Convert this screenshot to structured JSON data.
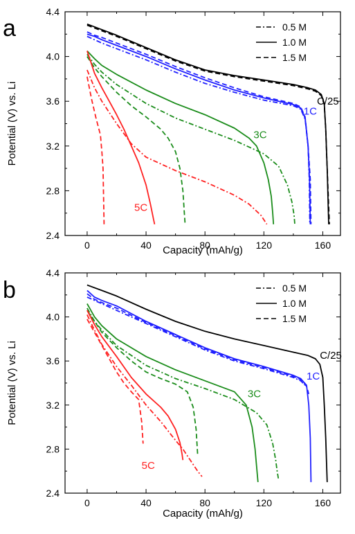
{
  "chart_data": [
    {
      "panel_label": "a",
      "type": "line",
      "xlabel": "Capacity (mAh/g)",
      "ylabel": "Potential (V) vs. Li",
      "xlim": [
        -15,
        172
      ],
      "ylim": [
        2.4,
        4.4
      ],
      "xticks": [
        0,
        40,
        80,
        120,
        160
      ],
      "yticks": [
        2.4,
        2.8,
        3.2,
        3.6,
        4.0,
        4.4
      ],
      "legend": {
        "placement": "top-right",
        "entries": [
          {
            "label": "0.5 M",
            "style": "dashdot"
          },
          {
            "label": "1.0 M",
            "style": "solid"
          },
          {
            "label": "1.5 M",
            "style": "dashed"
          }
        ]
      },
      "rate_labels": [
        {
          "text": "C/25",
          "color": "#000000",
          "x": 156,
          "y": 3.57
        },
        {
          "text": "1C",
          "color": "#1f1fff",
          "x": 147,
          "y": 3.48
        },
        {
          "text": "3C",
          "color": "#1a8c1a",
          "x": 113,
          "y": 3.27
        },
        {
          "text": "5C",
          "color": "#ff2020",
          "x": 32,
          "y": 2.62
        }
      ],
      "series": [
        {
          "rate": "C/25",
          "concentration": "1.0 M",
          "color": "#000000",
          "style": "solid",
          "x": [
            0,
            10,
            20,
            40,
            60,
            80,
            100,
            120,
            140,
            150,
            155,
            159,
            161,
            162,
            163,
            164
          ],
          "y": [
            4.29,
            4.24,
            4.19,
            4.08,
            3.97,
            3.88,
            3.83,
            3.79,
            3.75,
            3.72,
            3.7,
            3.66,
            3.58,
            3.35,
            3.0,
            2.5
          ]
        },
        {
          "rate": "C/25",
          "concentration": "1.5 M",
          "color": "#000000",
          "style": "dashed",
          "x": [
            0,
            10,
            20,
            40,
            60,
            80,
            100,
            120,
            140,
            150,
            155,
            159,
            161,
            162,
            163,
            164.5
          ],
          "y": [
            4.28,
            4.23,
            4.18,
            4.07,
            3.96,
            3.87,
            3.82,
            3.78,
            3.74,
            3.71,
            3.69,
            3.65,
            3.57,
            3.35,
            3.0,
            2.5
          ]
        },
        {
          "rate": "1C",
          "concentration": "1.0 M",
          "color": "#1f1fff",
          "style": "solid",
          "x": [
            0,
            5,
            10,
            20,
            40,
            60,
            80,
            100,
            120,
            140,
            145,
            148,
            150,
            151,
            151.5
          ],
          "y": [
            4.2,
            4.18,
            4.15,
            4.1,
            4.0,
            3.89,
            3.79,
            3.7,
            3.63,
            3.57,
            3.54,
            3.45,
            3.2,
            2.9,
            2.5
          ]
        },
        {
          "rate": "1C",
          "concentration": "0.5 M",
          "color": "#1f1fff",
          "style": "dashdot",
          "x": [
            0,
            5,
            10,
            20,
            40,
            60,
            80,
            100,
            120,
            140,
            145,
            148,
            150,
            150.8,
            151.2
          ],
          "y": [
            4.18,
            4.15,
            4.12,
            4.07,
            3.97,
            3.86,
            3.76,
            3.68,
            3.61,
            3.56,
            3.53,
            3.44,
            3.2,
            2.9,
            2.5
          ]
        },
        {
          "rate": "1C",
          "concentration": "1.5 M",
          "color": "#1f1fff",
          "style": "dashed",
          "x": [
            0,
            5,
            10,
            20,
            40,
            60,
            80,
            100,
            120,
            140,
            145,
            148,
            150,
            151.5,
            152
          ],
          "y": [
            4.22,
            4.19,
            4.17,
            4.12,
            4.02,
            3.91,
            3.81,
            3.72,
            3.64,
            3.58,
            3.55,
            3.46,
            3.2,
            2.9,
            2.5
          ]
        },
        {
          "rate": "3C",
          "concentration": "1.0 M",
          "color": "#1a8c1a",
          "style": "solid",
          "x": [
            0,
            5,
            10,
            20,
            40,
            60,
            80,
            100,
            110,
            115,
            120,
            123,
            125,
            126,
            126.5
          ],
          "y": [
            4.05,
            3.98,
            3.92,
            3.84,
            3.7,
            3.58,
            3.48,
            3.36,
            3.27,
            3.2,
            3.05,
            2.9,
            2.75,
            2.6,
            2.5
          ]
        },
        {
          "rate": "3C",
          "concentration": "0.5 M",
          "color": "#1a8c1a",
          "style": "dashdot",
          "x": [
            0,
            5,
            10,
            20,
            40,
            60,
            80,
            100,
            120,
            130,
            136,
            139,
            140.5,
            141
          ],
          "y": [
            4.02,
            3.93,
            3.86,
            3.75,
            3.58,
            3.45,
            3.35,
            3.25,
            3.13,
            3.02,
            2.85,
            2.7,
            2.58,
            2.5
          ]
        },
        {
          "rate": "3C",
          "concentration": "1.5 M",
          "color": "#1a8c1a",
          "style": "dashed",
          "x": [
            0,
            5,
            10,
            20,
            30,
            40,
            50,
            55,
            60,
            63,
            65,
            66,
            66.5
          ],
          "y": [
            4.0,
            3.9,
            3.82,
            3.68,
            3.56,
            3.46,
            3.35,
            3.27,
            3.15,
            3.0,
            2.8,
            2.6,
            2.5
          ]
        },
        {
          "rate": "5C",
          "concentration": "1.0 M",
          "color": "#ff2020",
          "style": "solid",
          "x": [
            0,
            5,
            10,
            15,
            20,
            25,
            30,
            35,
            40,
            43,
            45,
            45.8
          ],
          "y": [
            4.05,
            3.85,
            3.72,
            3.6,
            3.48,
            3.35,
            3.2,
            3.05,
            2.85,
            2.68,
            2.55,
            2.5
          ]
        },
        {
          "rate": "5C",
          "concentration": "0.5 M",
          "color": "#ff2020",
          "style": "dashdot",
          "x": [
            0,
            5,
            10,
            20,
            30,
            40,
            60,
            80,
            100,
            110,
            118,
            122
          ],
          "y": [
            3.88,
            3.72,
            3.6,
            3.4,
            3.22,
            3.1,
            2.98,
            2.88,
            2.76,
            2.68,
            2.58,
            2.5
          ]
        },
        {
          "rate": "5C",
          "concentration": "1.5 M",
          "color": "#ff2020",
          "style": "dashed",
          "x": [
            0,
            3,
            6,
            9,
            10,
            10.8,
            11.2,
            11.5
          ],
          "y": [
            3.82,
            3.62,
            3.45,
            3.3,
            3.15,
            3.0,
            2.7,
            2.5
          ]
        }
      ]
    },
    {
      "panel_label": "b",
      "type": "line",
      "xlabel": "Capacity (mAh/g)",
      "ylabel": "Potential (V) vs. Li",
      "xlim": [
        -15,
        172
      ],
      "ylim": [
        2.4,
        4.4
      ],
      "xticks": [
        0,
        40,
        80,
        120,
        160
      ],
      "yticks": [
        2.4,
        2.8,
        3.2,
        3.6,
        4.0,
        4.4
      ],
      "legend": {
        "placement": "top-right",
        "entries": [
          {
            "label": "0.5 M",
            "style": "dashdot"
          },
          {
            "label": "1.0 M",
            "style": "solid"
          },
          {
            "label": "1.5 M",
            "style": "dashed"
          }
        ]
      },
      "rate_labels": [
        {
          "text": "C/25",
          "color": "#000000",
          "x": 158,
          "y": 3.62
        },
        {
          "text": "1C",
          "color": "#1f1fff",
          "x": 149,
          "y": 3.43
        },
        {
          "text": "3C",
          "color": "#1a8c1a",
          "x": 109,
          "y": 3.27
        },
        {
          "text": "5C",
          "color": "#ff2020",
          "x": 37,
          "y": 2.62
        }
      ],
      "series": [
        {
          "rate": "C/25",
          "concentration": "1.0 M",
          "color": "#000000",
          "style": "solid",
          "x": [
            0,
            10,
            20,
            40,
            60,
            80,
            100,
            120,
            140,
            150,
            155,
            158,
            160,
            161,
            162,
            163
          ],
          "y": [
            4.29,
            4.24,
            4.19,
            4.07,
            3.96,
            3.87,
            3.8,
            3.74,
            3.68,
            3.65,
            3.62,
            3.57,
            3.45,
            3.2,
            2.9,
            2.5
          ]
        },
        {
          "rate": "1C",
          "concentration": "1.0 M",
          "color": "#1f1fff",
          "style": "solid",
          "x": [
            0,
            5,
            10,
            20,
            40,
            60,
            80,
            100,
            120,
            140,
            145,
            149,
            150.5,
            151.5,
            152
          ],
          "y": [
            4.24,
            4.18,
            4.15,
            4.1,
            3.96,
            3.84,
            3.72,
            3.62,
            3.55,
            3.47,
            3.44,
            3.38,
            3.2,
            2.9,
            2.5
          ]
        },
        {
          "rate": "1C",
          "concentration": "0.5 M",
          "color": "#1f1fff",
          "style": "dashdot",
          "x": [
            0,
            5,
            10,
            20,
            40,
            60,
            80,
            100,
            120,
            140,
            145,
            148
          ],
          "y": [
            4.18,
            4.15,
            4.12,
            4.06,
            3.94,
            3.82,
            3.7,
            3.6,
            3.53,
            3.45,
            3.42,
            3.38
          ]
        },
        {
          "rate": "1C",
          "concentration": "1.5 M",
          "color": "#1f1fff",
          "style": "dashed",
          "x": [
            0,
            5,
            10,
            20,
            40,
            60,
            80,
            100,
            120,
            140,
            145,
            149,
            150.5
          ],
          "y": [
            4.21,
            4.16,
            4.13,
            4.08,
            3.95,
            3.83,
            3.71,
            3.61,
            3.54,
            3.46,
            3.43,
            3.37,
            3.3
          ]
        },
        {
          "rate": "3C",
          "concentration": "1.0 M",
          "color": "#1a8c1a",
          "style": "solid",
          "x": [
            0,
            5,
            10,
            20,
            40,
            60,
            80,
            100,
            108,
            112,
            114,
            115,
            116
          ],
          "y": [
            4.12,
            4.0,
            3.92,
            3.8,
            3.64,
            3.52,
            3.42,
            3.32,
            3.2,
            3.0,
            2.8,
            2.65,
            2.5
          ]
        },
        {
          "rate": "3C",
          "concentration": "0.5 M",
          "color": "#1a8c1a",
          "style": "dashdot",
          "x": [
            0,
            5,
            10,
            20,
            40,
            60,
            80,
            100,
            115,
            122,
            126,
            128,
            129,
            130
          ],
          "y": [
            4.08,
            3.96,
            3.88,
            3.74,
            3.56,
            3.44,
            3.35,
            3.25,
            3.13,
            3.02,
            2.85,
            2.7,
            2.6,
            2.52
          ]
        },
        {
          "rate": "3C",
          "concentration": "1.5 M",
          "color": "#1a8c1a",
          "style": "dashed",
          "x": [
            0,
            5,
            10,
            20,
            30,
            40,
            50,
            60,
            68,
            72,
            74,
            75
          ],
          "y": [
            4.06,
            3.96,
            3.86,
            3.72,
            3.6,
            3.5,
            3.44,
            3.39,
            3.32,
            3.18,
            2.98,
            2.75
          ]
        },
        {
          "rate": "5C",
          "concentration": "1.0 M",
          "color": "#ff2020",
          "style": "solid",
          "x": [
            0,
            5,
            10,
            20,
            30,
            40,
            50,
            55,
            60,
            63,
            64.5,
            65
          ],
          "y": [
            4.06,
            3.93,
            3.82,
            3.64,
            3.45,
            3.3,
            3.18,
            3.1,
            2.98,
            2.86,
            2.75,
            2.7
          ]
        },
        {
          "rate": "5C",
          "concentration": "0.5 M",
          "color": "#ff2020",
          "style": "dashdot",
          "x": [
            0,
            5,
            10,
            20,
            30,
            40,
            50,
            60,
            65,
            70,
            75,
            78
          ],
          "y": [
            4.02,
            3.88,
            3.75,
            3.55,
            3.38,
            3.2,
            3.05,
            2.88,
            2.8,
            2.7,
            2.6,
            2.55
          ]
        },
        {
          "rate": "5C",
          "concentration": "1.5 M",
          "color": "#ff2020",
          "style": "dashed",
          "x": [
            0,
            5,
            10,
            15,
            20,
            25,
            30,
            35,
            37,
            38
          ],
          "y": [
            3.98,
            3.86,
            3.74,
            3.62,
            3.5,
            3.4,
            3.32,
            3.25,
            3.05,
            2.85
          ]
        }
      ]
    }
  ]
}
